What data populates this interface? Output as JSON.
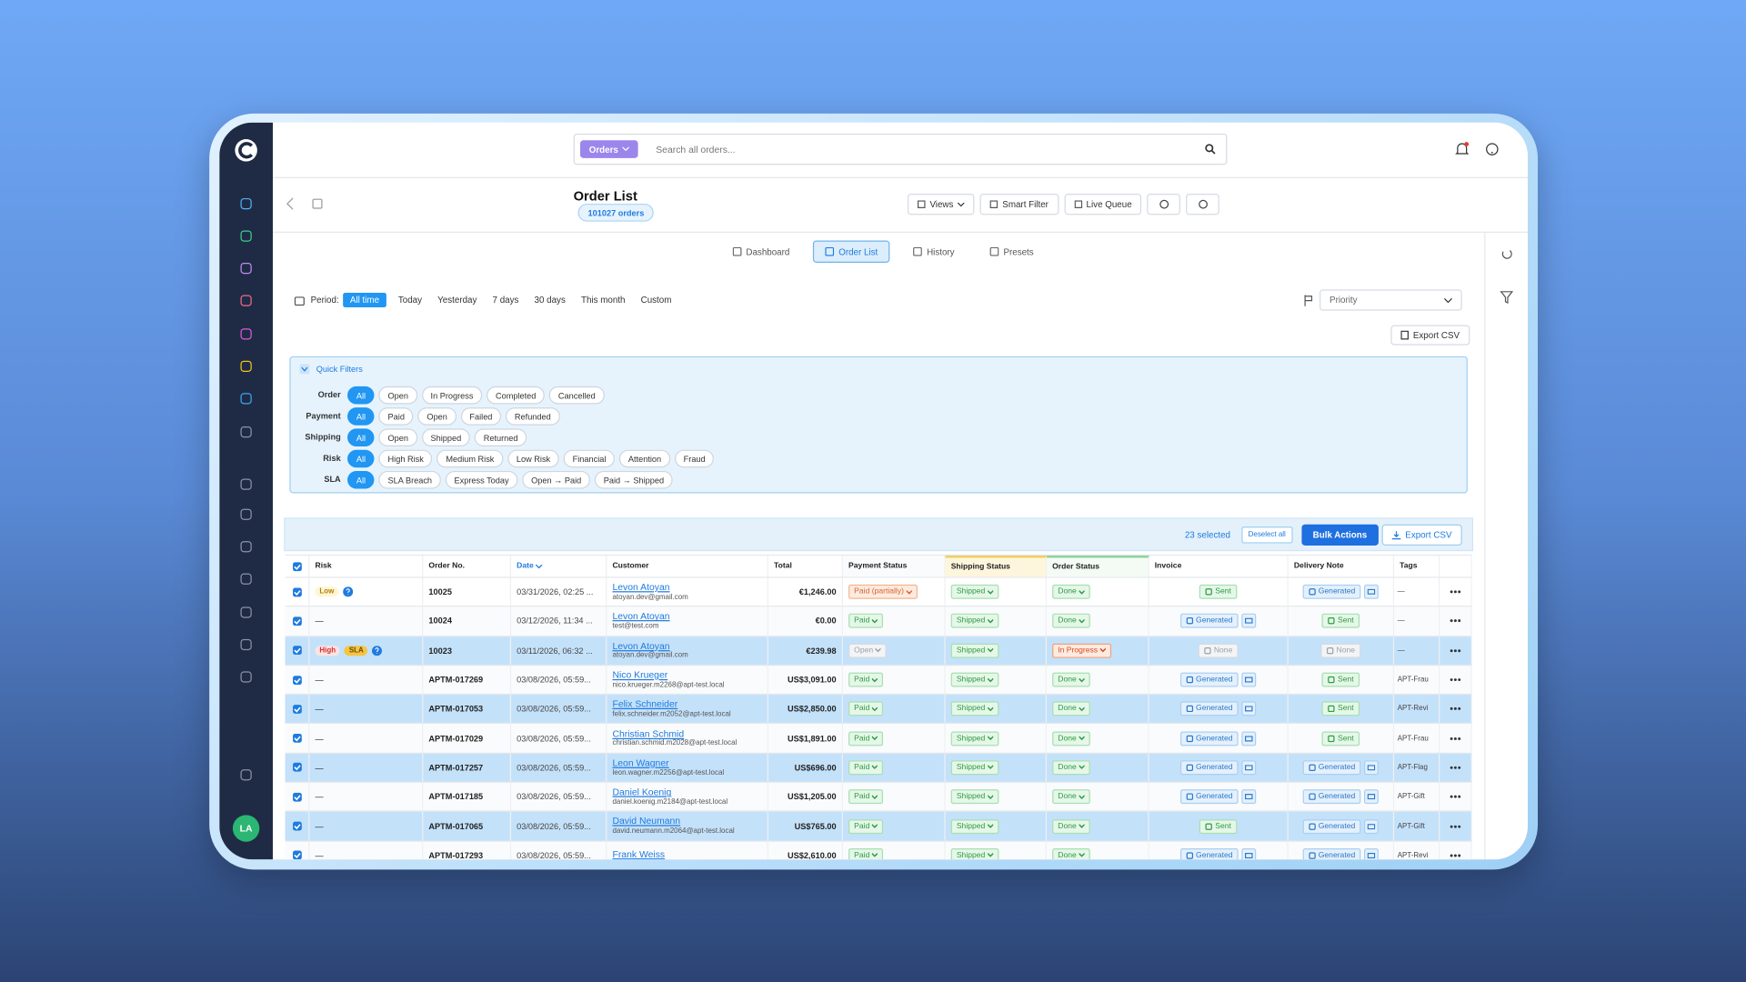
{
  "search": {
    "scope": "Orders",
    "placeholder": "Search all orders..."
  },
  "header": {
    "title": "Order List",
    "count": "101027 orders",
    "buttons": [
      "Views",
      "Smart Filter",
      "Live Queue"
    ]
  },
  "tabs": [
    "Dashboard",
    "Order List",
    "History",
    "Presets"
  ],
  "active_tab": 1,
  "period": {
    "label": "Period:",
    "options": [
      "All time",
      "Today",
      "Yesterday",
      "7 days",
      "30 days",
      "This month",
      "Custom"
    ],
    "active": 0
  },
  "priority": "Priority",
  "export_top": "Export CSV",
  "quick_filters": {
    "title": "Quick Filters",
    "groups": [
      {
        "label": "Order",
        "options": [
          "All",
          "Open",
          "In Progress",
          "Completed",
          "Cancelled"
        ]
      },
      {
        "label": "Payment",
        "options": [
          "All",
          "Paid",
          "Open",
          "Failed",
          "Refunded"
        ]
      },
      {
        "label": "Shipping",
        "options": [
          "All",
          "Open",
          "Shipped",
          "Returned"
        ]
      },
      {
        "label": "Risk",
        "options": [
          "All",
          "High Risk",
          "Medium Risk",
          "Low Risk",
          "Financial",
          "Attention",
          "Fraud"
        ]
      },
      {
        "label": "SLA",
        "options": [
          "All",
          "SLA Breach",
          "Express Today",
          "Open → Paid",
          "Paid → Shipped"
        ]
      }
    ]
  },
  "selection": {
    "count": "23 selected",
    "deselect": "Deselect all",
    "bulk": "Bulk Actions",
    "export": "Export CSV"
  },
  "table": {
    "columns": [
      "Risk",
      "Order No.",
      "Date",
      "Customer",
      "Total",
      "Payment Status",
      "Shipping Status",
      "Order Status",
      "Invoice",
      "Delivery Note",
      "Tags"
    ],
    "rows": [
      {
        "risk": [
          "Low"
        ],
        "info": true,
        "order_no": "10025",
        "date": "03/31/2026, 02:25 ...",
        "customer": "Levon Atoyan",
        "email": "atoyan.dev@gmail.com",
        "total": "€1,246.00",
        "payment": "Paid (partially)",
        "shipping": "Shipped",
        "status": "Done",
        "invoice": "Sent",
        "delivery": "Generated",
        "tags": "—",
        "highlighted": false
      },
      {
        "risk": [
          "—"
        ],
        "info": false,
        "order_no": "10024",
        "date": "03/12/2026, 11:34 ...",
        "customer": "Levon Atoyan",
        "email": "test@test.com",
        "total": "€0.00",
        "payment": "Paid",
        "shipping": "Shipped",
        "status": "Done",
        "invoice": "Generated",
        "delivery": "Sent",
        "tags": "—",
        "highlighted": false
      },
      {
        "risk": [
          "High",
          "SLA"
        ],
        "info": true,
        "order_no": "10023",
        "date": "03/11/2026, 06:32 ...",
        "customer": "Levon Atoyan",
        "email": "atoyan.dev@gmail.com",
        "total": "€239.98",
        "payment": "Open",
        "shipping": "Shipped",
        "status": "In Progress",
        "invoice": "None",
        "delivery": "None",
        "tags": "—",
        "highlighted": true
      },
      {
        "risk": [
          "—"
        ],
        "info": false,
        "order_no": "APTM-017269",
        "date": "03/08/2026, 05:59...",
        "customer": "Nico Krueger",
        "email": "nico.krueger.m2268@apt-test.local",
        "total": "US$3,091.00",
        "payment": "Paid",
        "shipping": "Shipped",
        "status": "Done",
        "invoice": "Generated",
        "delivery": "Sent",
        "tags": "APT-Frau",
        "highlighted": false
      },
      {
        "risk": [
          "—"
        ],
        "info": false,
        "order_no": "APTM-017053",
        "date": "03/08/2026, 05:59...",
        "customer": "Felix Schneider",
        "email": "felix.schneider.m2052@apt-test.local",
        "total": "US$2,850.00",
        "payment": "Paid",
        "shipping": "Shipped",
        "status": "Done",
        "invoice": "Generated",
        "delivery": "Sent",
        "tags": "APT-Revi",
        "highlighted": true
      },
      {
        "risk": [
          "—"
        ],
        "info": false,
        "order_no": "APTM-017029",
        "date": "03/08/2026, 05:59...",
        "customer": "Christian Schmid",
        "email": "christian.schmid.m2028@apt-test.local",
        "total": "US$1,891.00",
        "payment": "Paid",
        "shipping": "Shipped",
        "status": "Done",
        "invoice": "Generated",
        "delivery": "Sent",
        "tags": "APT-Frau",
        "highlighted": false
      },
      {
        "risk": [
          "—"
        ],
        "info": false,
        "order_no": "APTM-017257",
        "date": "03/08/2026, 05:59...",
        "customer": "Leon Wagner",
        "email": "leon.wagner.m2256@apt-test.local",
        "total": "US$696.00",
        "payment": "Paid",
        "shipping": "Shipped",
        "status": "Done",
        "invoice": "Generated",
        "delivery": "Generated",
        "tags": "APT-Flag",
        "highlighted": true
      },
      {
        "risk": [
          "—"
        ],
        "info": false,
        "order_no": "APTM-017185",
        "date": "03/08/2026, 05:59...",
        "customer": "Daniel Koenig",
        "email": "daniel.koenig.m2184@apt-test.local",
        "total": "US$1,205.00",
        "payment": "Paid",
        "shipping": "Shipped",
        "status": "Done",
        "invoice": "Generated",
        "delivery": "Generated",
        "tags": "APT-Gift",
        "highlighted": false
      },
      {
        "risk": [
          "—"
        ],
        "info": false,
        "order_no": "APTM-017065",
        "date": "03/08/2026, 05:59...",
        "customer": "David Neumann",
        "email": "david.neumann.m2064@apt-test.local",
        "total": "US$765.00",
        "payment": "Paid",
        "shipping": "Shipped",
        "status": "Done",
        "invoice": "Sent",
        "delivery": "Generated",
        "tags": "APT-Gift",
        "highlighted": true
      },
      {
        "risk": [
          "—"
        ],
        "info": false,
        "order_no": "APTM-017293",
        "date": "03/08/2026, 05:59...",
        "customer": "Frank Weiss",
        "total": "US$2,610.00",
        "payment": "Paid",
        "shipping": "Shipped",
        "status": "Done",
        "invoice": "Generated",
        "delivery": "Generated",
        "tags": "APT-Revi",
        "highlighted": false
      }
    ]
  },
  "user": {
    "initials": "LA"
  }
}
